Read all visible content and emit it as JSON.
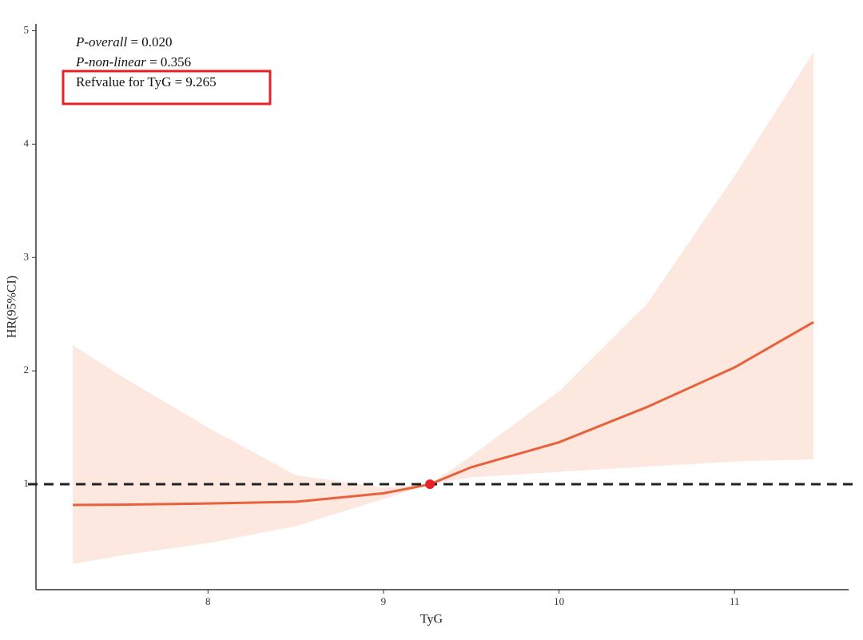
{
  "chart_data": {
    "type": "line",
    "x_label": "TyG",
    "y_label": "HR(95%CI)",
    "xlim": [
      7.02,
      11.65
    ],
    "ylim": [
      0.07,
      5.06
    ],
    "xticks": [
      8,
      9,
      10,
      11
    ],
    "yticks": [
      1,
      2,
      3,
      4,
      5
    ],
    "x": [
      7.23,
      7.5,
      8,
      8.5,
      9,
      9.265,
      9.5,
      10,
      10.5,
      11,
      11.45
    ],
    "series": [
      {
        "name": "HR",
        "color": "#e8603c",
        "values": [
          0.817,
          0.82,
          0.83,
          0.845,
          0.92,
          1,
          1.15,
          1.37,
          1.68,
          2.03,
          2.43
        ]
      },
      {
        "name": "Lower",
        "color": "#fde8e0",
        "values": [
          0.296,
          0.37,
          0.48,
          0.63,
          0.87,
          1,
          1.06,
          1.11,
          1.155,
          1.2,
          1.22
        ]
      },
      {
        "name": "Upper",
        "color": "#fde8e0",
        "values": [
          2.225,
          1.96,
          1.5,
          1.08,
          0.97,
          1,
          1.25,
          1.82,
          2.59,
          3.72,
          4.81
        ]
      }
    ],
    "reference_point": {
      "x": 9.265,
      "y": 1,
      "color": "#e8202a"
    },
    "reference_line": {
      "y": 1,
      "color": "#222222"
    },
    "annotations": [
      {
        "italic": "P-overall",
        "text": " = 0.020"
      },
      {
        "italic": "P-non-linear",
        "text": " = 0.356"
      },
      {
        "text": "Refvalue for TyG = 9.265"
      }
    ]
  }
}
